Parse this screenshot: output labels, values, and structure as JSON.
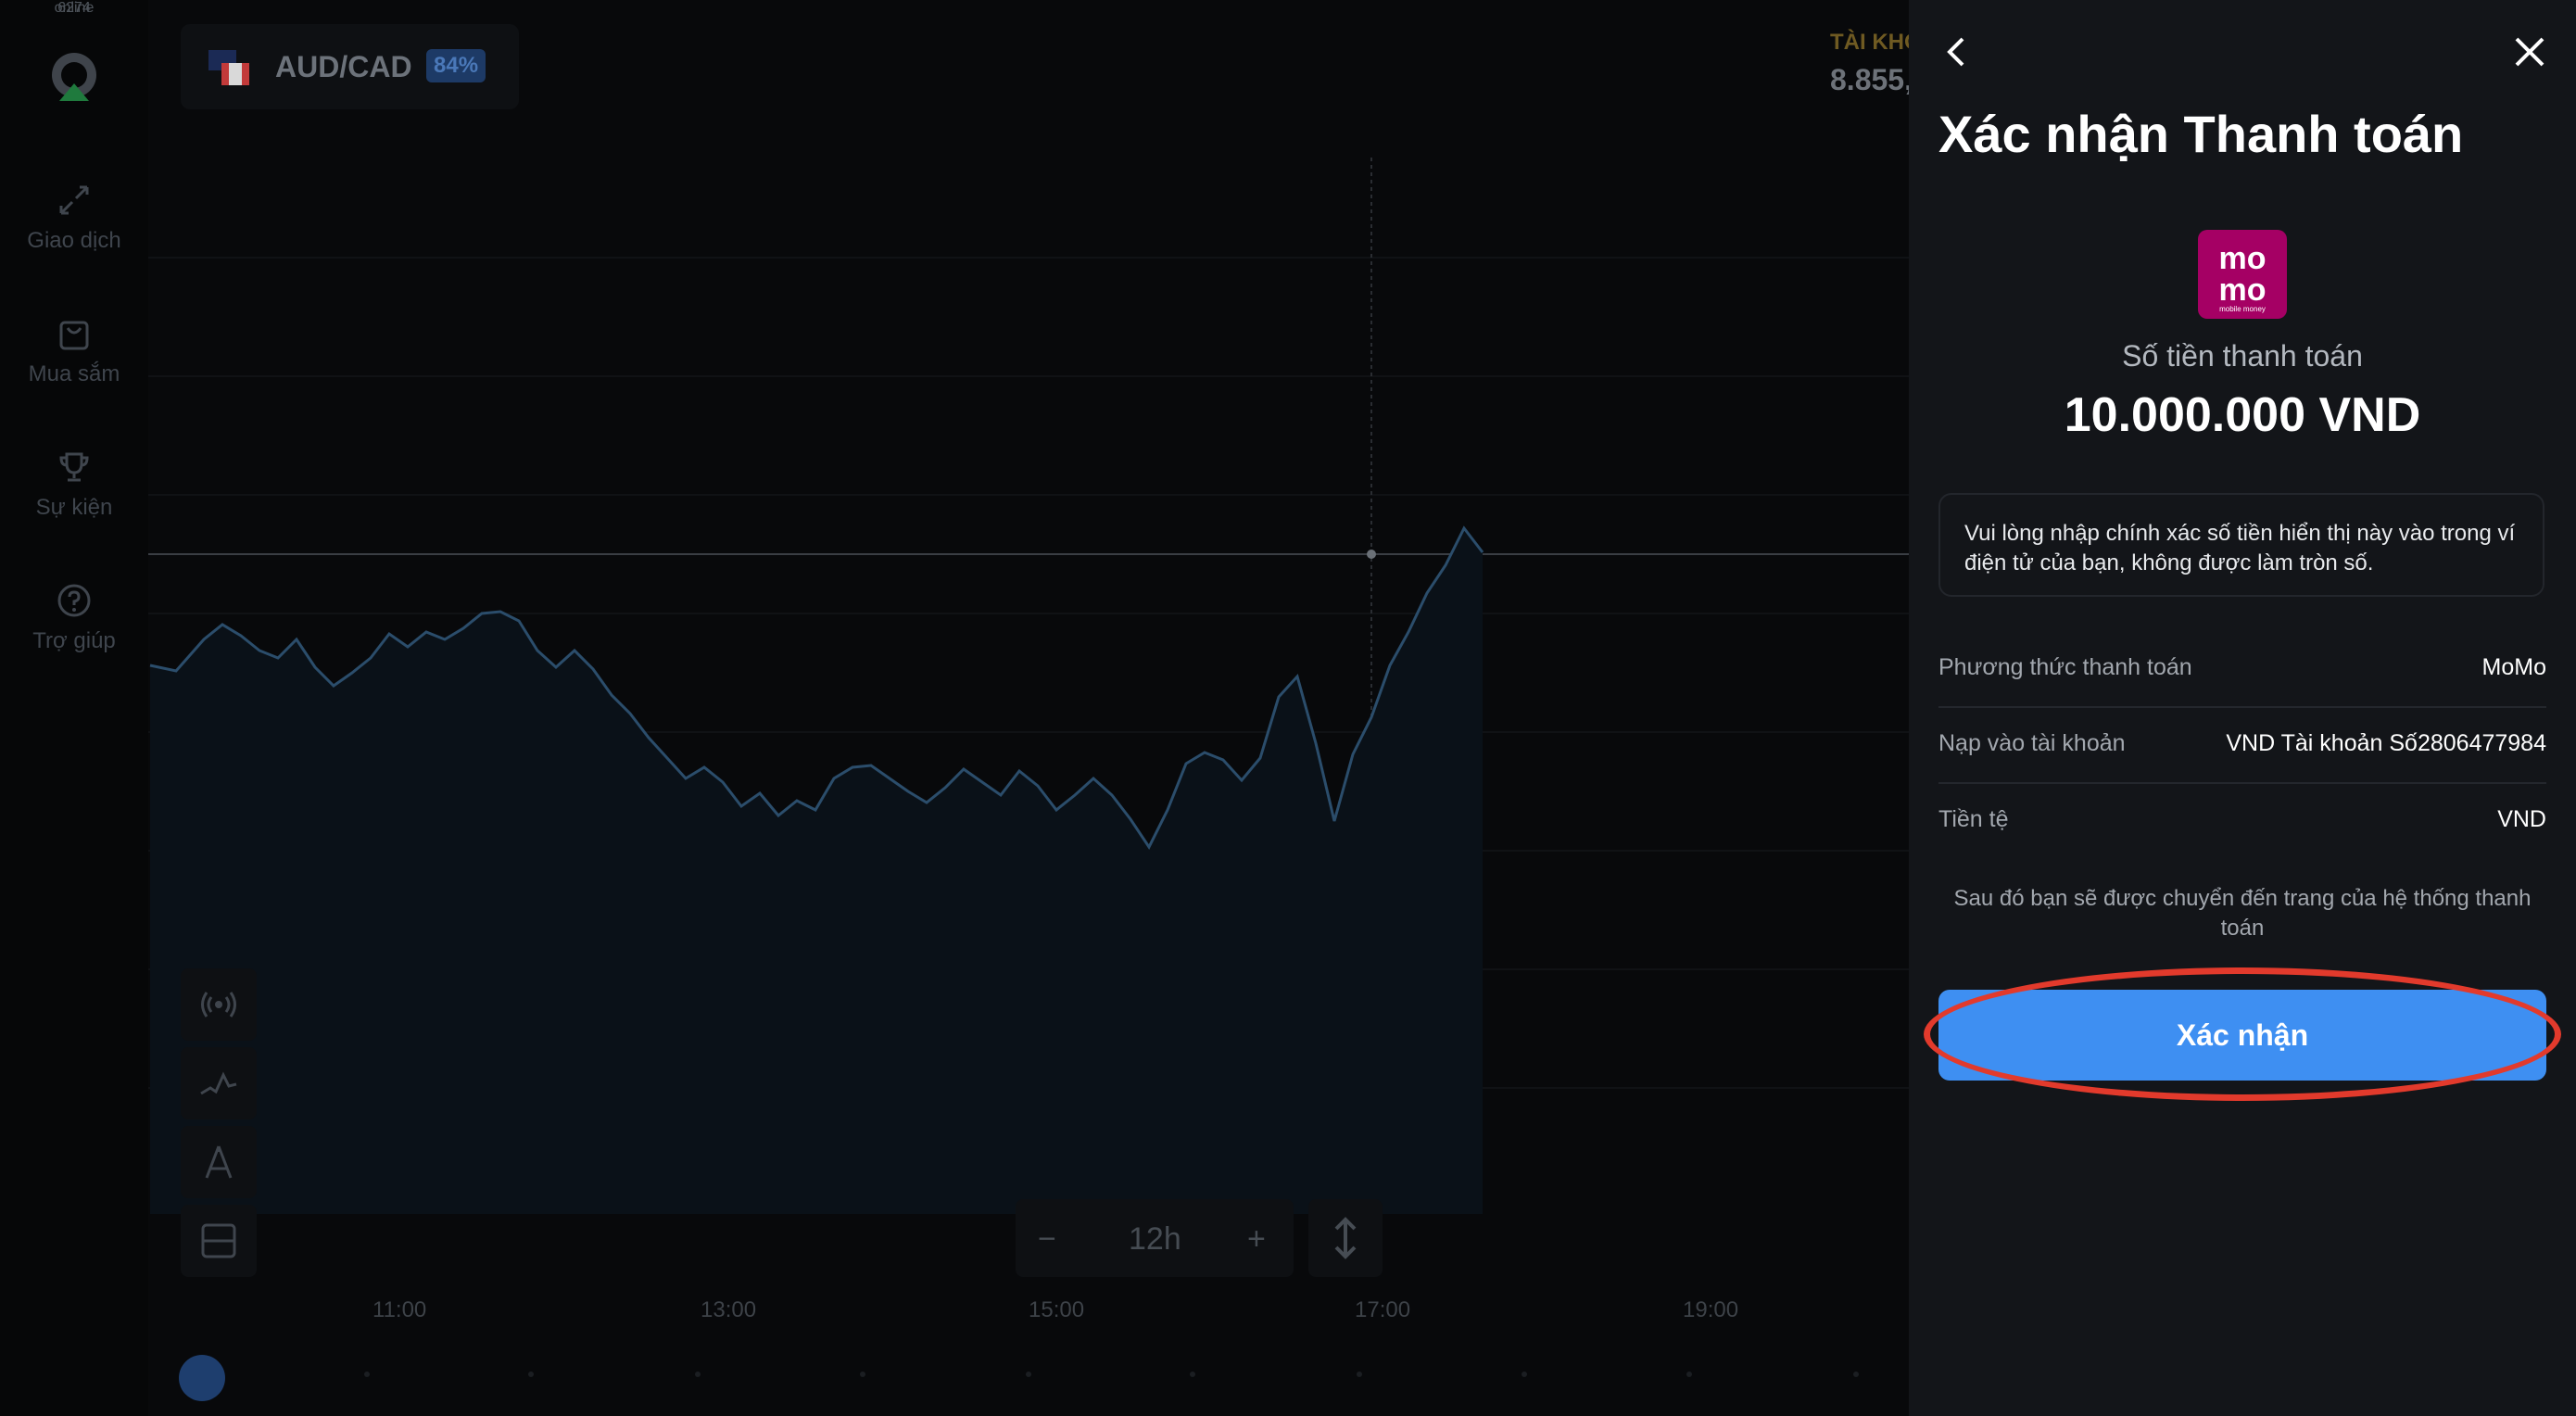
{
  "sidebar": {
    "items": [
      {
        "label": "Giao dịch",
        "icon": "trade-arrows-icon"
      },
      {
        "label": "Mua sắm",
        "icon": "shopping-bag-icon"
      },
      {
        "label": "Sự kiện",
        "icon": "trophy-icon"
      },
      {
        "label": "Trợ giúp",
        "icon": "help-circle-icon"
      }
    ],
    "online_count": "6274",
    "online_label": "online"
  },
  "asset": {
    "pair": "AUD/CAD",
    "payout": "84%"
  },
  "account": {
    "label": "TÀI KHO",
    "balance": "8.855,"
  },
  "chart": {
    "zoom_level": "12h",
    "zoom_minus": "−",
    "zoom_plus": "+",
    "time_labels": [
      "11:00",
      "13:00",
      "15:00",
      "17:00",
      "19:00"
    ]
  },
  "payment": {
    "title": "Xác nhận Thanh toán",
    "logo_text_top": "mo",
    "logo_text_bottom": "mo",
    "logo_caption": "mobile money",
    "amount_label": "Số tiền thanh toán",
    "amount_value": "10.000.000 VND",
    "notice": "Vui lòng nhập chính xác số tiền hiển thị này vào trong ví điện tử của bạn, không được làm tròn số.",
    "rows": [
      {
        "key": "Phương thức thanh toán",
        "value": "MoMo"
      },
      {
        "key": "Nạp vào tài khoản",
        "value": "VND Tài khoản Số2806477984"
      },
      {
        "key": "Tiền tệ",
        "value": "VND"
      }
    ],
    "redirect_note": "Sau đó bạn sẽ được chuyển đến trang của hệ thống thanh toán",
    "confirm_label": "Xác nhận"
  },
  "colors": {
    "accent_blue": "#3e8ff2",
    "momo_brand": "#a50064",
    "highlight_red": "#e23a2c"
  }
}
